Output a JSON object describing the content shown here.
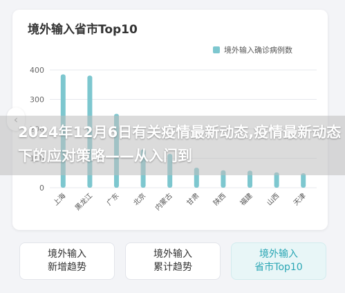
{
  "title": "境外输入省市Top10",
  "chart_data": {
    "type": "bar",
    "categories": [
      "上海",
      "黑龙江",
      "广东",
      "北京",
      "内蒙古",
      "甘肃",
      "陕西",
      "福建",
      "山西",
      "天津"
    ],
    "series": [
      {
        "name": "境外输入确诊病例数",
        "values": [
          385,
          381,
          251,
          130,
          115,
          68,
          59,
          58,
          52,
          49
        ]
      }
    ],
    "yticks": [
      0,
      100,
      200,
      300,
      400
    ],
    "ylim": [
      0,
      400
    ],
    "legend": "top-right",
    "color": "#7dc7cf"
  },
  "overlay_text": "2024年12月6日有关疫情最新动态,疫情最新动态下的应对策略——从入门到",
  "tabs": [
    {
      "line1": "境外输入",
      "line2": "新增趋势",
      "active": false
    },
    {
      "line1": "境外输入",
      "line2": "累计趋势",
      "active": false
    },
    {
      "line1": "境外输入",
      "line2": "省市Top10",
      "active": true
    }
  ],
  "icons": {
    "prev": "chevron-left-icon"
  }
}
